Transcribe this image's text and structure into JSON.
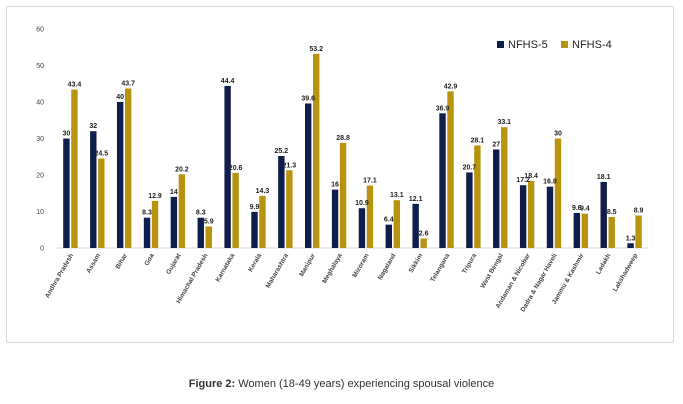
{
  "chart_data": {
    "type": "bar",
    "categories": [
      "Andhra Pradesh",
      "Assam",
      "Bihar",
      "Goa",
      "Gujarat",
      "Himachal Pradesh",
      "Karnataka",
      "Kerala",
      "Maharashtra",
      "Manipur",
      "Meghalaya",
      "Mizoram",
      "Nagaland",
      "Sikkim",
      "Telangana",
      "Tripura",
      "West Bengal",
      "Andaman & Nicobar",
      "Dadra & Nagar Haveli",
      "Jammu & Kashmir",
      "Ladakh",
      "Lakshadweep"
    ],
    "series": [
      {
        "name": "NFHS-5",
        "color": "#0f1d4a",
        "values": [
          30,
          32,
          40,
          8.3,
          14,
          8.3,
          44.4,
          9.9,
          25.2,
          39.6,
          16,
          10.9,
          6.4,
          12.1,
          36.9,
          20.7,
          27,
          17.2,
          16.8,
          9.6,
          18.1,
          1.3
        ]
      },
      {
        "name": "NFHS-4",
        "color": "#b8930f",
        "values": [
          43.4,
          24.5,
          43.7,
          12.9,
          20.2,
          5.9,
          20.6,
          14.3,
          21.3,
          53.2,
          28.8,
          17.1,
          13.1,
          2.6,
          42.9,
          28.1,
          33.1,
          18.4,
          30,
          9.4,
          8.5,
          8.9
        ]
      }
    ],
    "ylim": [
      0,
      60
    ],
    "yticks": [
      0,
      10,
      20,
      30,
      40,
      50,
      60
    ],
    "legend_position": "top-right",
    "grid": false
  },
  "caption": {
    "bold": "Figure 2:",
    "text": " Women (18-49 years) experiencing spousal violence"
  }
}
